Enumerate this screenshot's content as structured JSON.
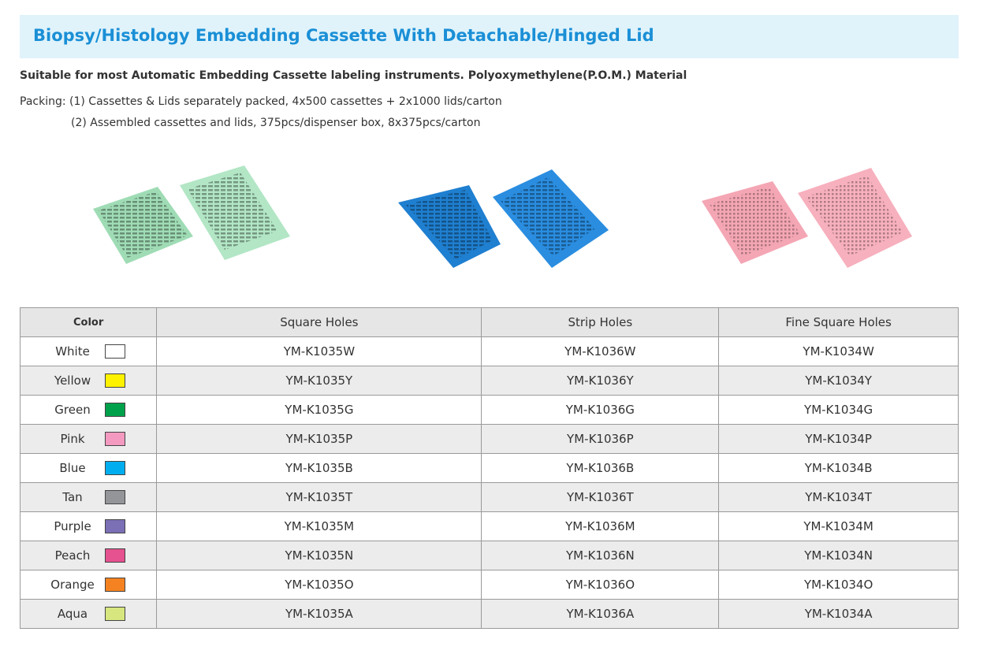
{
  "header": {
    "title": "Biopsy/Histology Embedding Cassette With Detachable/Hinged Lid",
    "subtitle": "Suitable for most Automatic Embedding Cassette labeling instruments. Polyoxymethylene(P.O.M.) Material",
    "packing": [
      "Packing: (1) Cassettes & Lids separately packed, 4x500 cassettes + 2x1000 lids/carton",
      "(2) Assembled cassettes and lids, 375pcs/dispenser box, 8x375pcs/carton"
    ]
  },
  "table": {
    "columns": [
      "Color",
      "Square Holes",
      "Strip Holes",
      "Fine Square Holes"
    ],
    "rows": [
      {
        "color": "White",
        "swatch": "#ffffff",
        "codes": [
          "YM-K1035W",
          "YM-K1036W",
          "YM-K1034W"
        ]
      },
      {
        "color": "Yellow",
        "swatch": "#fff200",
        "codes": [
          "YM-K1035Y",
          "YM-K1036Y",
          "YM-K1034Y"
        ]
      },
      {
        "color": "Green",
        "swatch": "#00a14b",
        "codes": [
          "YM-K1035G",
          "YM-K1036G",
          "YM-K1034G"
        ]
      },
      {
        "color": "Pink",
        "swatch": "#f49ac1",
        "codes": [
          "YM-K1035P",
          "YM-K1036P",
          "YM-K1034P"
        ]
      },
      {
        "color": "Blue",
        "swatch": "#00aeef",
        "codes": [
          "YM-K1035B",
          "YM-K1036B",
          "YM-K1034B"
        ]
      },
      {
        "color": "Tan",
        "swatch": "#939598",
        "codes": [
          "YM-K1035T",
          "YM-K1036T",
          "YM-K1034T"
        ]
      },
      {
        "color": "Purple",
        "swatch": "#7b6fb5",
        "codes": [
          "YM-K1035M",
          "YM-K1036M",
          "YM-K1034M"
        ]
      },
      {
        "color": "Peach",
        "swatch": "#e6518f",
        "codes": [
          "YM-K1035N",
          "YM-K1036N",
          "YM-K1034N"
        ]
      },
      {
        "color": "Orange",
        "swatch": "#f58220",
        "codes": [
          "YM-K1035O",
          "YM-K1036O",
          "YM-K1034O"
        ]
      },
      {
        "color": "Aqua",
        "swatch": "#d7e67e",
        "codes": [
          "YM-K1035A",
          "YM-K1036A",
          "YM-K1034A"
        ]
      }
    ]
  }
}
